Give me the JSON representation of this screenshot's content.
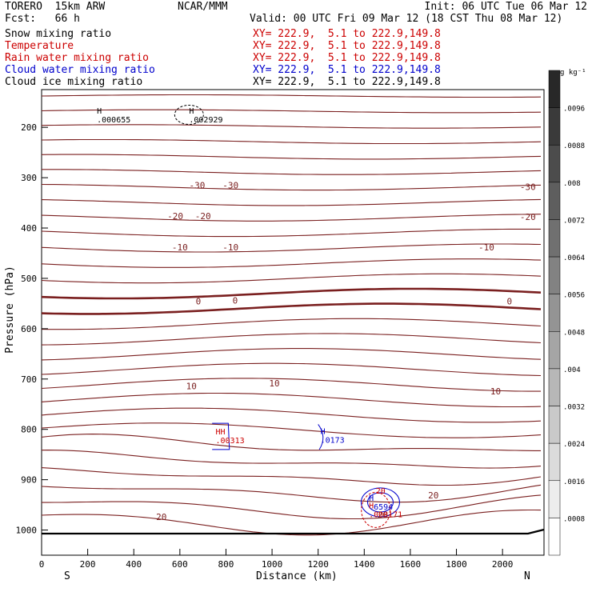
{
  "header": {
    "model": "TORERO  15km ARW",
    "forecast": "Fcst:   66 h",
    "org": "NCAR/MMM",
    "init": "Init: 06 UTC Tue 06 Mar 12",
    "valid": "Valid: 00 UTC Fri 09 Mar 12 (18 CST Thu 08 Mar 12)"
  },
  "legend": [
    {
      "name": "Snow mixing ratio",
      "xsec": "XY= 222.9,  5.1 to 222.9,149.8",
      "color": "#000000",
      "xsec_color": "#cc0000"
    },
    {
      "name": "Temperature",
      "xsec": "XY= 222.9,  5.1 to 222.9,149.8",
      "color": "#cc0000",
      "xsec_color": "#cc0000"
    },
    {
      "name": "Rain water mixing ratio",
      "xsec": "XY= 222.9,  5.1 to 222.9,149.8",
      "color": "#cc0000",
      "xsec_color": "#cc0000"
    },
    {
      "name": "Cloud water mixing ratio",
      "xsec": "XY= 222.9,  5.1 to 222.9,149.8",
      "color": "#0000cc",
      "xsec_color": "#0000cc"
    },
    {
      "name": "Cloud ice mixing ratio",
      "xsec": "XY= 222.9,  5.1 to 222.9,149.8",
      "color": "#000000",
      "xsec_color": "#000000"
    }
  ],
  "chart_data": {
    "type": "contour",
    "xlabel": "Distance (km)",
    "ylabel": "Pressure (hPa)",
    "x_ticks": [
      0,
      200,
      400,
      600,
      800,
      1000,
      1200,
      1400,
      1600,
      1800,
      2000
    ],
    "y_ticks": [
      200,
      300,
      400,
      500,
      600,
      700,
      800,
      900,
      1000
    ],
    "xlim": [
      0,
      2180
    ],
    "ylim": [
      1050,
      125
    ],
    "left_end": "S",
    "right_end": "N",
    "colorbar": {
      "units": "g kg⁻¹",
      "ticks": [
        ".0096",
        ".0088",
        ".008",
        ".0072",
        ".0064",
        ".0056",
        ".0048",
        ".004",
        ".0032",
        ".0024",
        ".0016",
        ".0008"
      ]
    },
    "temperature_labels": [
      {
        "text": "-30",
        "x": 675,
        "p": 315
      },
      {
        "text": "-30",
        "x": 820,
        "p": 315
      },
      {
        "text": "-30",
        "x": 2110,
        "p": 318
      },
      {
        "text": "-20",
        "x": 580,
        "p": 376
      },
      {
        "text": "-20",
        "x": 700,
        "p": 376
      },
      {
        "text": "-20",
        "x": 2110,
        "p": 378
      },
      {
        "text": "-10",
        "x": 600,
        "p": 438
      },
      {
        "text": "-10",
        "x": 820,
        "p": 438
      },
      {
        "text": "-10",
        "x": 1930,
        "p": 438
      },
      {
        "text": "0",
        "x": 680,
        "p": 545
      },
      {
        "text": "0",
        "x": 840,
        "p": 544
      },
      {
        "text": "0",
        "x": 2030,
        "p": 545
      },
      {
        "text": "10",
        "x": 650,
        "p": 714
      },
      {
        "text": "10",
        "x": 1010,
        "p": 708
      },
      {
        "text": "10",
        "x": 1970,
        "p": 724
      },
      {
        "text": "20",
        "x": 520,
        "p": 974
      },
      {
        "text": "20",
        "x": 1700,
        "p": 931
      },
      {
        "text": "20",
        "x": 1480,
        "p": 970
      }
    ],
    "extrema": [
      {
        "mark": "H",
        "value": ".000655",
        "x": 240,
        "p": 185,
        "color": "#000000"
      },
      {
        "mark": "H",
        "value": ".002929",
        "x": 640,
        "p": 185,
        "color": "#000000"
      },
      {
        "mark": "HH",
        "value": ".00313",
        "x": 755,
        "p": 823,
        "color": "#cc0000"
      },
      {
        "mark": "H",
        "value": ".0173",
        "x": 1210,
        "p": 822,
        "color": "#0000cc"
      },
      {
        "mark": "H",
        "value": ".6594",
        "x": 1420,
        "p": 955,
        "color": "#0000cc"
      },
      {
        "mark": "H",
        "value": ".008171",
        "x": 1420,
        "p": 970,
        "color": "#cc0000"
      },
      {
        "mark": "20",
        "value": "",
        "x": 1450,
        "p": 940,
        "color": "#cc0000"
      }
    ]
  }
}
